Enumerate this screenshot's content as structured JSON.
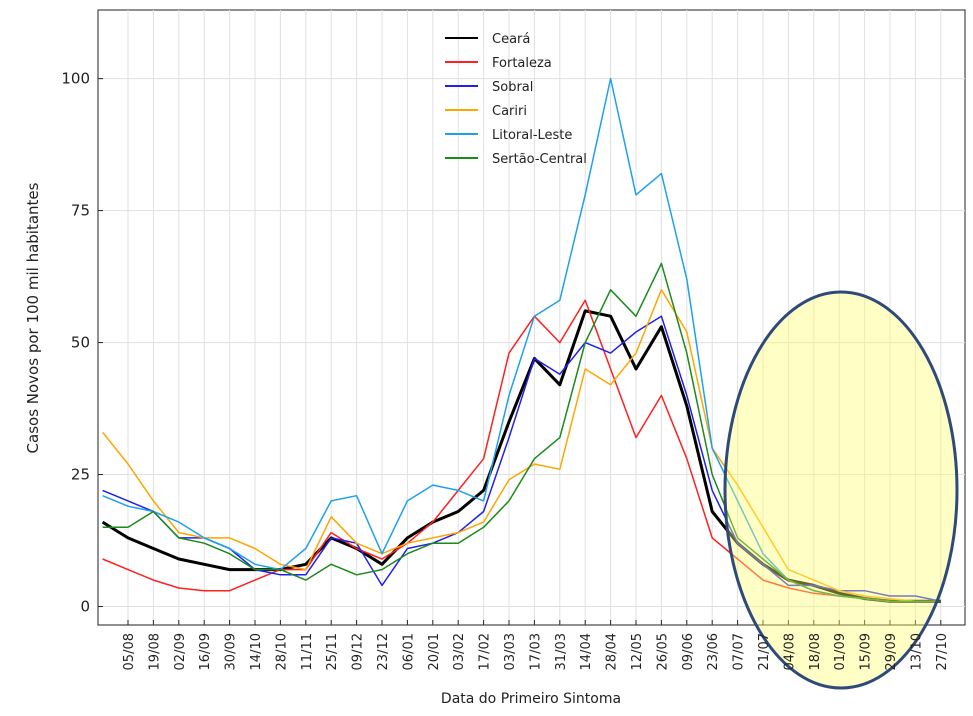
{
  "chart_data": {
    "type": "line",
    "y_label": "Casos Novos por 100 mil habitantes",
    "x_label": "Data do Primeiro Sintoma",
    "categories": [
      null,
      "05/08",
      "19/08",
      "02/09",
      "16/09",
      "30/09",
      "14/10",
      "28/10",
      "11/11",
      "25/11",
      "09/12",
      "23/12",
      "06/01",
      "20/01",
      "03/02",
      "17/02",
      "03/03",
      "17/03",
      "31/03",
      "14/04",
      "28/04",
      "12/05",
      "26/05",
      "09/06",
      "23/06",
      "07/07",
      "21/07",
      "04/08",
      "18/08",
      "01/09",
      "15/09",
      "29/09",
      "13/10",
      "27/10"
    ],
    "series": [
      {
        "name": "Ceará",
        "color": "#000000",
        "width": 3,
        "values": [
          16,
          13,
          11,
          9,
          8,
          7,
          7,
          7,
          8,
          13,
          11,
          8,
          13,
          16,
          18,
          22,
          35,
          47,
          42,
          56,
          55,
          45,
          53,
          38,
          18,
          12,
          8,
          5,
          4,
          2.5,
          1.5,
          1,
          1,
          1
        ]
      },
      {
        "name": "Fortaleza",
        "color": "#ff2020",
        "width": 1.5,
        "values": [
          9,
          7,
          5,
          3.5,
          3,
          3,
          5,
          7,
          7,
          14,
          11,
          9,
          12,
          16,
          22,
          28,
          48,
          55,
          50,
          58,
          45,
          32,
          40,
          28,
          13,
          9,
          5,
          3.5,
          2.5,
          2,
          1.5,
          1,
          1,
          1
        ]
      },
      {
        "name": "Sobral",
        "color": "#2020ee",
        "width": 1.5,
        "values": [
          22,
          20,
          18,
          13,
          13,
          11,
          7,
          6,
          6,
          13,
          12,
          4,
          11,
          12,
          14,
          18,
          32,
          47,
          44,
          50,
          48,
          52,
          55,
          40,
          22,
          12,
          8,
          4,
          4,
          3,
          3,
          2,
          2,
          1
        ]
      },
      {
        "name": "Cariri",
        "color": "#ffa500",
        "width": 1.5,
        "values": [
          33,
          27,
          20,
          14,
          13,
          13,
          11,
          8,
          7,
          17,
          12,
          10,
          12,
          13,
          14,
          16,
          24,
          27,
          26,
          45,
          42,
          48,
          60,
          52,
          30,
          23,
          15,
          7,
          5,
          3,
          2,
          1.5,
          1,
          1
        ]
      },
      {
        "name": "Litoral-Leste",
        "color": "#1ea0f0",
        "width": 1.5,
        "values": [
          21,
          19,
          18,
          16,
          13,
          11,
          8,
          7,
          11,
          20,
          21,
          10,
          20,
          23,
          22,
          20,
          40,
          55,
          58,
          78,
          100,
          78,
          82,
          62,
          30,
          20,
          10,
          5,
          3,
          2,
          1.5,
          1,
          1,
          1
        ]
      },
      {
        "name": "Sertão-Central",
        "color": "#1a8a1a",
        "width": 1.5,
        "values": [
          15,
          15,
          18,
          13,
          12,
          10,
          7,
          7,
          5,
          8,
          6,
          7,
          10,
          12,
          12,
          15,
          20,
          28,
          32,
          50,
          60,
          55,
          65,
          48,
          25,
          13,
          9,
          5,
          3,
          2,
          1.5,
          1,
          1,
          1
        ]
      }
    ],
    "ylim": [
      -3.5,
      113
    ],
    "yticks": [
      0,
      25,
      50,
      75,
      100
    ],
    "grid": true
  }
}
